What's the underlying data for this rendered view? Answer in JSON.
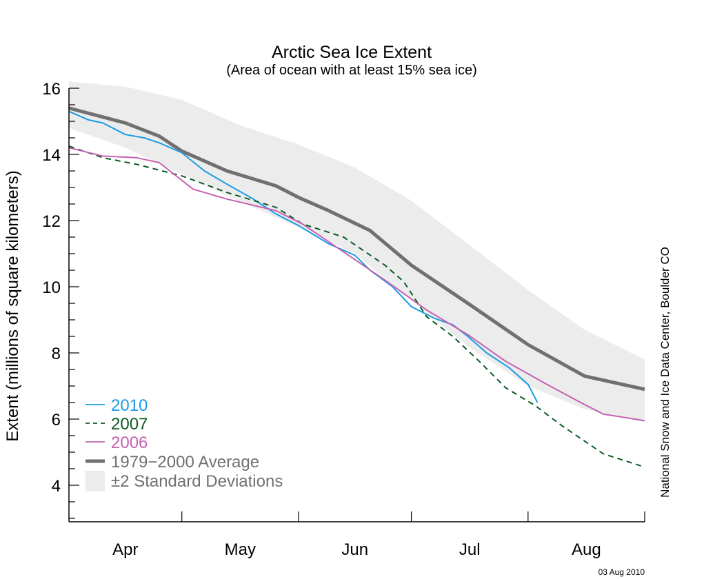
{
  "chart_data": {
    "type": "line",
    "title": "Arctic Sea Ice Extent",
    "subtitle": "(Area of ocean with at least 15% sea ice)",
    "xlabel": "",
    "ylabel": "Extent (millions of square kilometers)",
    "x_unit": "days since Apr 1",
    "xlim": [
      0,
      153
    ],
    "ylim": [
      2.9,
      16
    ],
    "yticks": [
      4,
      6,
      8,
      10,
      12,
      14,
      16
    ],
    "ytick_labels": [
      "4",
      "6",
      "8",
      "10",
      "12",
      "14",
      "16"
    ],
    "yminor_step": 0.5,
    "xtick_days": [
      30,
      61,
      91,
      122
    ],
    "month_labels": [
      {
        "label": "Apr",
        "day": 15
      },
      {
        "label": "May",
        "day": 45.5
      },
      {
        "label": "Jun",
        "day": 76
      },
      {
        "label": "Jul",
        "day": 106.5
      },
      {
        "label": "Aug",
        "day": 137.5
      }
    ],
    "credit": "National Snow and Ice Data Center, Boulder CO",
    "date_stamp": "03 Aug 2010",
    "legend_position": "bottom-left",
    "band": {
      "name": "±2 Standard Deviations",
      "color": "#ececec",
      "x": [
        0,
        15,
        30,
        45,
        61,
        76,
        91,
        106,
        122,
        137,
        153
      ],
      "upper": [
        16.2,
        16.05,
        15.65,
        14.9,
        14.3,
        13.6,
        12.6,
        11.3,
        9.9,
        8.7,
        7.8
      ],
      "lower": [
        14.8,
        14.2,
        13.4,
        12.6,
        11.8,
        11.0,
        9.6,
        8.2,
        7.0,
        6.3,
        5.9
      ]
    },
    "series": [
      {
        "name": "1979-2000 Average",
        "legend_label": "1979−2000 Average",
        "color": "#707070",
        "dash": false,
        "width": 5,
        "x": [
          0,
          15,
          24,
          30,
          42,
          55,
          61,
          69,
          80,
          91,
          106,
          122,
          137,
          153
        ],
        "values": [
          15.4,
          14.95,
          14.55,
          14.1,
          13.5,
          13.05,
          12.7,
          12.3,
          11.7,
          10.65,
          9.5,
          8.25,
          7.3,
          6.9
        ]
      },
      {
        "name": "2010",
        "legend_label": "2010",
        "color": "#1a9be6",
        "dash": false,
        "width": 2,
        "x": [
          0,
          5,
          9,
          15,
          20,
          24,
          30,
          36,
          42,
          49,
          55,
          61,
          69,
          76,
          80,
          86,
          91,
          97,
          102,
          106,
          111,
          117,
          122,
          124.5
        ],
        "values": [
          15.3,
          15.05,
          14.95,
          14.6,
          14.5,
          14.35,
          14.05,
          13.5,
          13.1,
          12.65,
          12.2,
          11.85,
          11.3,
          10.95,
          10.5,
          10.0,
          9.4,
          9.05,
          8.85,
          8.5,
          8.0,
          7.55,
          7.05,
          6.5
        ]
      },
      {
        "name": "2007",
        "legend_label": "2007",
        "color": "#0b5a24",
        "dash": true,
        "width": 2,
        "x": [
          0,
          9,
          18,
          30,
          42,
          55,
          62,
          73,
          84,
          89,
          95,
          102,
          109,
          116,
          124,
          131,
          142,
          153
        ],
        "values": [
          14.25,
          13.9,
          13.7,
          13.35,
          12.85,
          12.4,
          11.9,
          11.5,
          10.65,
          10.15,
          9.1,
          8.5,
          7.75,
          6.95,
          6.4,
          5.8,
          4.95,
          4.55
        ]
      },
      {
        "name": "2006",
        "legend_label": "2006",
        "color": "#c462b0",
        "dash": false,
        "width": 2,
        "x": [
          0,
          9,
          18,
          24,
          33,
          42,
          55,
          62,
          73,
          84,
          95,
          106,
          116,
          127,
          136,
          142,
          153
        ],
        "values": [
          14.2,
          13.95,
          13.9,
          13.75,
          12.95,
          12.65,
          12.3,
          11.9,
          11.05,
          10.2,
          9.3,
          8.55,
          7.75,
          7.05,
          6.5,
          6.15,
          5.95
        ]
      }
    ]
  }
}
